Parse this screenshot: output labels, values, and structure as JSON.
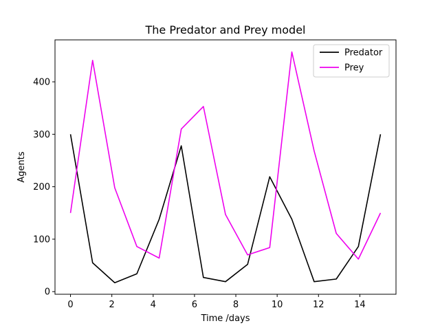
{
  "chart_data": {
    "type": "line",
    "title": "The Predator and Prey model",
    "xlabel": "Time /days",
    "ylabel": "Agents",
    "xlim": [
      -0.75,
      15.75
    ],
    "ylim": [
      -5,
      480
    ],
    "xticks": [
      0,
      2,
      4,
      6,
      8,
      10,
      12,
      14
    ],
    "yticks": [
      0,
      100,
      200,
      300,
      400
    ],
    "grid": false,
    "legend_position": "top-right",
    "x": [
      0,
      1.07,
      2.14,
      3.21,
      4.29,
      5.36,
      6.43,
      7.5,
      8.57,
      9.64,
      10.71,
      11.79,
      12.86,
      13.93,
      15
    ],
    "series": [
      {
        "name": "Predator",
        "color": "#000000",
        "values": [
          300,
          55,
          17,
          34,
          138,
          278,
          27,
          19,
          52,
          219,
          138,
          19,
          24,
          86,
          300
        ]
      },
      {
        "name": "Prey",
        "color": "#ee00ee",
        "values": [
          150,
          441,
          198,
          86,
          64,
          310,
          353,
          147,
          70,
          84,
          457,
          268,
          111,
          62,
          150
        ]
      }
    ]
  }
}
